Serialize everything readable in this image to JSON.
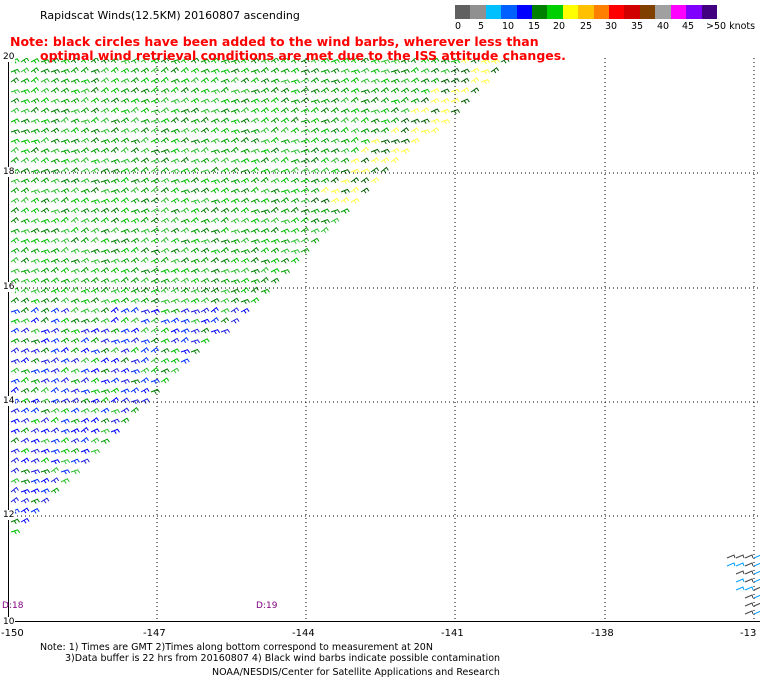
{
  "title": "Rapidscat Winds(12.5KM) 20160807 ascending",
  "note": {
    "line1": "Note: black circles have been added to the wind barbs, wherever less than",
    "line2": "optimal wind retrieval conditions are met due to the ISS attitude changes."
  },
  "legend": {
    "labels": [
      "0",
      "5",
      "10",
      "15",
      "20",
      "25",
      "30",
      "35",
      "40",
      "45",
      ">50 knots"
    ],
    "colors": [
      "#606060",
      "#909090",
      "#00c0ff",
      "#0060ff",
      "#0000ff",
      "#008000",
      "#00d000",
      "#ffff00",
      "#ffc000",
      "#ff8000",
      "#ff0000",
      "#d00000",
      "#804000",
      "#a0a0a0",
      "#ff00ff",
      "#8000ff",
      "#400080"
    ]
  },
  "map": {
    "lat_labels": [
      "20",
      "18",
      "16",
      "14",
      "12",
      "10"
    ],
    "lon_labels": [
      "-150",
      "-147",
      "-144",
      "-141",
      "-138",
      "-13"
    ],
    "day_labels": [
      "D:18",
      "D:19"
    ]
  },
  "footer": {
    "line1": "Note: 1) Times are GMT 2)Times along bottom correspond to measurement at 20N",
    "line2": "3)Data buffer is 22 hrs from 20160807 4) Black wind barbs indicate possible contamination",
    "line3": "NOAA/NESDIS/Center for Satellite Applications and Research"
  }
}
